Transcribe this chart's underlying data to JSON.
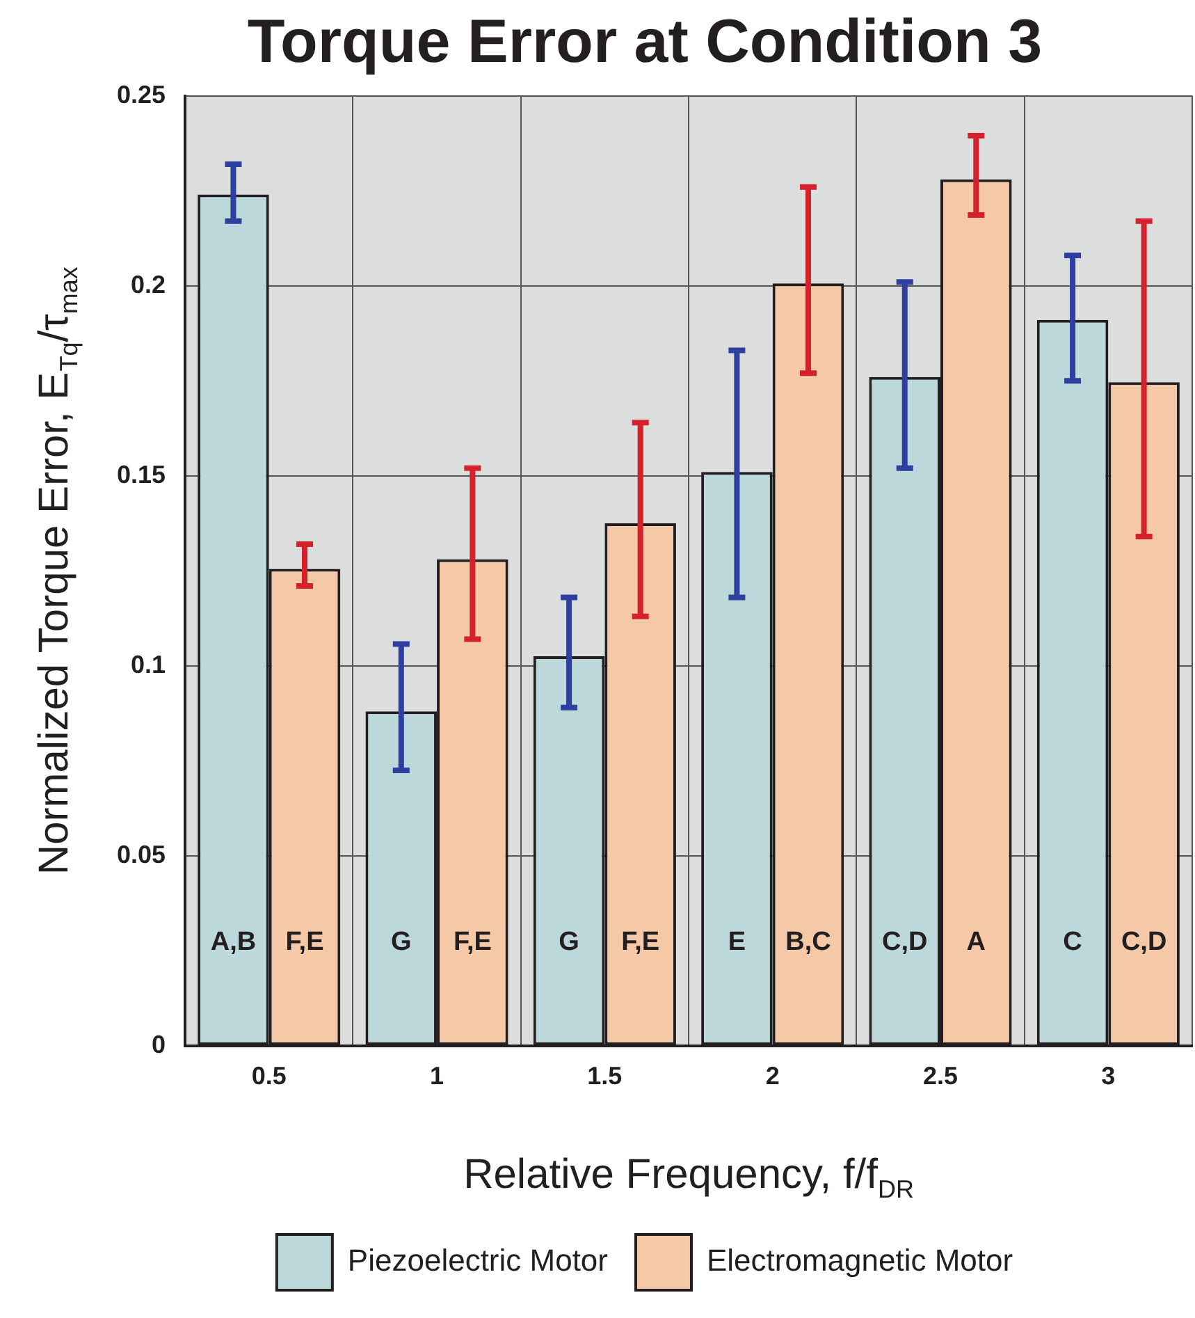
{
  "chart_data": {
    "type": "bar",
    "title": "Torque Error at Condition 3",
    "xlabel": "Relative Frequency, f/f$_{DR}$",
    "ylabel": "Normalized Torque Error, E$_{Tq}$/τ$_{max}$",
    "categories": [
      "0.5",
      "1",
      "1.5",
      "2",
      "2.5",
      "3"
    ],
    "series": [
      {
        "name": "Piezoelectric Motor",
        "color": "#bcd8da",
        "values": [
          0.224,
          0.088,
          0.1025,
          0.151,
          0.176,
          0.191
        ],
        "errors": [
          [
            0.217,
            0.232
          ],
          [
            0.0725,
            0.1057
          ],
          [
            0.089,
            0.118
          ],
          [
            0.118,
            0.183
          ],
          [
            0.152,
            0.201
          ],
          [
            0.175,
            0.208
          ]
        ],
        "value_labels": [
          "A,B",
          "G",
          "G",
          "E",
          "C,D",
          "C"
        ]
      },
      {
        "name": "Electromagnetic Motor",
        "color": "#f5c9a8",
        "values": [
          0.1255,
          0.128,
          0.1375,
          0.2006,
          0.228,
          0.1746
        ],
        "errors": [
          [
            0.121,
            0.132
          ],
          [
            0.107,
            0.152
          ],
          [
            0.113,
            0.164
          ],
          [
            0.177,
            0.226
          ],
          [
            0.2186,
            0.2395
          ],
          [
            0.134,
            0.217
          ]
        ],
        "value_labels": [
          "F,E",
          "F,E",
          "F,E",
          "B,C",
          "A",
          "C,D"
        ]
      }
    ],
    "ylim": [
      0,
      0.25
    ],
    "yticks": [
      0,
      0.05,
      0.1,
      0.15,
      0.2,
      0.25
    ],
    "grid": true,
    "legend": "bottom"
  }
}
